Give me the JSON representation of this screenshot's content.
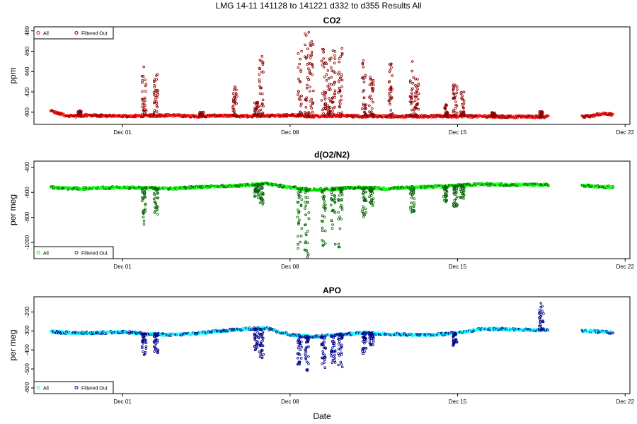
{
  "figure": {
    "suptitle": "LMG   14-11    141128 to 141221    d332 to d355   Results All",
    "xlabel": "Date"
  },
  "chart_data": [
    {
      "type": "scatter",
      "title": "CO2",
      "ylabel": "ppm",
      "x_range_days": [
        331.3,
        356.2
      ],
      "ylim": [
        388,
        484
      ],
      "y_ticks": [
        400,
        420,
        440,
        460,
        480
      ],
      "x_ticks": [
        {
          "day": 335,
          "label": "Dec 01"
        },
        {
          "day": 342,
          "label": "Dec 08"
        },
        {
          "day": 349,
          "label": "Dec 15"
        },
        {
          "day": 356,
          "label": "Dec 22"
        }
      ],
      "legend": {
        "position": "top-left",
        "entries": [
          "All",
          "Filtered Out"
        ]
      },
      "colors": {
        "all": "#ff0000",
        "filtered": "#8b0000"
      },
      "baseline": [
        [
          332.0,
          401
        ],
        [
          332.3,
          399
        ],
        [
          332.6,
          397
        ],
        [
          333.0,
          396
        ],
        [
          333.5,
          397
        ],
        [
          334.0,
          396.5
        ],
        [
          335.0,
          396
        ],
        [
          336.0,
          396.5
        ],
        [
          337.0,
          397
        ],
        [
          338.0,
          396
        ],
        [
          339.0,
          396.5
        ],
        [
          340.0,
          396
        ],
        [
          341.0,
          396.5
        ],
        [
          342.0,
          397
        ],
        [
          343.0,
          396
        ],
        [
          344.0,
          396.5
        ],
        [
          345.0,
          396
        ],
        [
          346.0,
          396
        ],
        [
          347.0,
          396
        ],
        [
          348.0,
          396
        ],
        [
          349.0,
          396
        ],
        [
          350.0,
          396
        ],
        [
          351.0,
          395.5
        ],
        [
          352.0,
          395.5
        ],
        [
          352.8,
          395.5
        ]
      ],
      "baseline_gap": [
        352.8,
        354.2
      ],
      "baseline2": [
        [
          354.2,
          395.5
        ],
        [
          354.6,
          396
        ],
        [
          354.9,
          398
        ],
        [
          355.2,
          399
        ],
        [
          355.5,
          397
        ]
      ],
      "spikes": [
        {
          "day": 333.2,
          "max": 402
        },
        {
          "day": 335.9,
          "max": 445
        },
        {
          "day": 336.4,
          "max": 440
        },
        {
          "day": 338.3,
          "max": 401
        },
        {
          "day": 339.7,
          "max": 425
        },
        {
          "day": 340.6,
          "max": 410
        },
        {
          "day": 340.8,
          "max": 455
        },
        {
          "day": 342.4,
          "max": 465
        },
        {
          "day": 342.7,
          "max": 480
        },
        {
          "day": 342.9,
          "max": 470
        },
        {
          "day": 343.4,
          "max": 465
        },
        {
          "day": 343.6,
          "max": 462
        },
        {
          "day": 343.8,
          "max": 463
        },
        {
          "day": 344.1,
          "max": 467
        },
        {
          "day": 345.1,
          "max": 455
        },
        {
          "day": 345.4,
          "max": 435
        },
        {
          "day": 346.2,
          "max": 450
        },
        {
          "day": 347.1,
          "max": 452
        },
        {
          "day": 347.3,
          "max": 433
        },
        {
          "day": 348.5,
          "max": 408
        },
        {
          "day": 348.9,
          "max": 430
        },
        {
          "day": 349.2,
          "max": 420
        },
        {
          "day": 350.5,
          "max": 400
        },
        {
          "day": 352.5,
          "max": 401
        }
      ]
    },
    {
      "type": "scatter",
      "title": "d(O2/N2)",
      "ylabel": "per meg",
      "x_range_days": [
        331.3,
        356.2
      ],
      "ylim": [
        -1130,
        -350
      ],
      "y_ticks": [
        -400,
        -600,
        -800,
        -1000
      ],
      "x_ticks": [
        {
          "day": 335,
          "label": "Dec 01"
        },
        {
          "day": 342,
          "label": "Dec 08"
        },
        {
          "day": 349,
          "label": "Dec 15"
        },
        {
          "day": 356,
          "label": "Dec 22"
        }
      ],
      "legend": {
        "position": "bottom-left",
        "entries": [
          "All",
          "Filtered Out"
        ]
      },
      "colors": {
        "all": "#00ff00",
        "filtered": "#006400"
      },
      "baseline": [
        [
          332.0,
          -560
        ],
        [
          333.0,
          -570
        ],
        [
          334.0,
          -565
        ],
        [
          335.0,
          -560
        ],
        [
          336.0,
          -565
        ],
        [
          337.0,
          -570
        ],
        [
          338.0,
          -560
        ],
        [
          339.0,
          -550
        ],
        [
          340.0,
          -545
        ],
        [
          341.0,
          -530
        ],
        [
          342.0,
          -560
        ],
        [
          343.0,
          -580
        ],
        [
          344.0,
          -570
        ],
        [
          345.0,
          -560
        ],
        [
          346.0,
          -570
        ],
        [
          347.0,
          -560
        ],
        [
          348.0,
          -555
        ],
        [
          349.0,
          -545
        ],
        [
          350.0,
          -535
        ],
        [
          351.0,
          -540
        ],
        [
          352.0,
          -540
        ],
        [
          352.8,
          -540
        ]
      ],
      "baseline_gap": [
        352.8,
        354.2
      ],
      "baseline2": [
        [
          354.2,
          -545
        ],
        [
          354.6,
          -550
        ],
        [
          354.9,
          -555
        ],
        [
          355.2,
          -555
        ],
        [
          355.5,
          -560
        ]
      ],
      "spikes": [
        {
          "day": 335.9,
          "max": -860
        },
        {
          "day": 336.4,
          "max": -800
        },
        {
          "day": 340.6,
          "max": -650
        },
        {
          "day": 340.8,
          "max": -700
        },
        {
          "day": 342.4,
          "max": -1060
        },
        {
          "day": 342.7,
          "max": -1120
        },
        {
          "day": 343.4,
          "max": -1040
        },
        {
          "day": 343.8,
          "max": -1030
        },
        {
          "day": 344.1,
          "max": -1050
        },
        {
          "day": 345.1,
          "max": -800
        },
        {
          "day": 345.4,
          "max": -720
        },
        {
          "day": 347.1,
          "max": -780
        },
        {
          "day": 348.5,
          "max": -680
        },
        {
          "day": 348.9,
          "max": -720
        },
        {
          "day": 349.2,
          "max": -650
        }
      ]
    },
    {
      "type": "scatter",
      "title": "APO",
      "ylabel": "per meg",
      "x_range_days": [
        331.3,
        356.2
      ],
      "ylim": [
        -630,
        -120
      ],
      "y_ticks": [
        -200,
        -300,
        -400,
        -500,
        -600
      ],
      "x_ticks": [
        {
          "day": 335,
          "label": "Dec 01"
        },
        {
          "day": 342,
          "label": "Dec 08"
        },
        {
          "day": 349,
          "label": "Dec 15"
        },
        {
          "day": 356,
          "label": "Dec 22"
        }
      ],
      "legend": {
        "position": "bottom-left",
        "entries": [
          "All",
          "Filtered Out"
        ]
      },
      "colors": {
        "all": "#00ffff",
        "filtered": "#00008b"
      },
      "baseline": [
        [
          332.0,
          -305
        ],
        [
          333.0,
          -310
        ],
        [
          334.0,
          -310
        ],
        [
          335.0,
          -305
        ],
        [
          336.0,
          -315
        ],
        [
          337.0,
          -320
        ],
        [
          338.0,
          -315
        ],
        [
          339.0,
          -300
        ],
        [
          340.0,
          -290
        ],
        [
          341.0,
          -285
        ],
        [
          342.0,
          -320
        ],
        [
          343.0,
          -330
        ],
        [
          344.0,
          -320
        ],
        [
          345.0,
          -310
        ],
        [
          346.0,
          -315
        ],
        [
          347.0,
          -320
        ],
        [
          348.0,
          -320
        ],
        [
          349.0,
          -310
        ],
        [
          350.0,
          -290
        ],
        [
          351.0,
          -290
        ],
        [
          352.0,
          -295
        ],
        [
          352.8,
          -295
        ]
      ],
      "baseline_gap": [
        352.8,
        354.2
      ],
      "baseline2": [
        [
          354.2,
          -300
        ],
        [
          354.6,
          -300
        ],
        [
          354.9,
          -305
        ],
        [
          355.2,
          -305
        ],
        [
          355.5,
          -310
        ]
      ],
      "spikes": [
        {
          "day": 335.9,
          "max": -430
        },
        {
          "day": 336.4,
          "max": -420
        },
        {
          "day": 340.6,
          "max": -400
        },
        {
          "day": 340.8,
          "max": -450
        },
        {
          "day": 342.4,
          "max": -480
        },
        {
          "day": 342.7,
          "max": -510
        },
        {
          "day": 343.4,
          "max": -500
        },
        {
          "day": 343.8,
          "max": -470
        },
        {
          "day": 344.1,
          "max": -490
        },
        {
          "day": 345.1,
          "max": -420
        },
        {
          "day": 345.4,
          "max": -380
        },
        {
          "day": 348.9,
          "max": -380
        },
        {
          "day": 352.5,
          "max": -150
        }
      ]
    }
  ]
}
